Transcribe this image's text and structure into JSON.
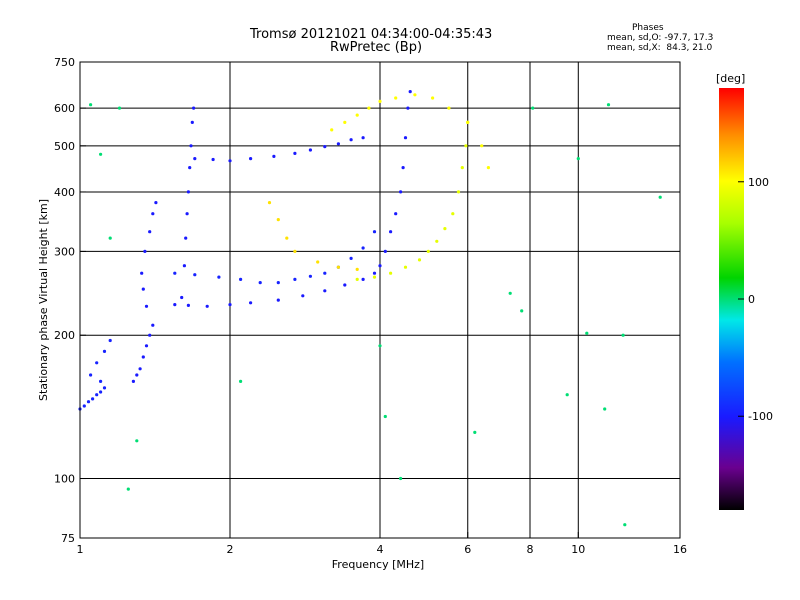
{
  "title_line1": "Tromsø 20121021 04:34:00-04:35:43",
  "title_line2": "RwPretec (Bp)",
  "phase_header": {
    "label": "Phases",
    "line_o": "mean, sd,O: -97.7, 17.3",
    "line_x": "mean, sd,X:  84.3, 21.0"
  },
  "colorbar": {
    "unit": "[deg]",
    "ticks": [
      {
        "value": 100,
        "label": "100"
      },
      {
        "value": 0,
        "label": "0"
      },
      {
        "value": -100,
        "label": "-100"
      }
    ],
    "range": [
      -180,
      180
    ]
  },
  "chart_data": {
    "type": "scatter",
    "xlabel": "Frequency [MHz]",
    "ylabel": "Stationary phase Virtual Height [km]",
    "xscale": "log",
    "yscale": "log",
    "xlim": [
      1,
      16
    ],
    "ylim": [
      75,
      750
    ],
    "xticks": [
      {
        "v": 1,
        "label": "1"
      },
      {
        "v": 2,
        "label": "2"
      },
      {
        "v": 4,
        "label": "4"
      },
      {
        "v": 6,
        "label": "6"
      },
      {
        "v": 8,
        "label": "8"
      },
      {
        "v": 10,
        "label": "10"
      },
      {
        "v": 16,
        "label": "16"
      }
    ],
    "xgrid": [
      2,
      4,
      6,
      8,
      10
    ],
    "yticks": [
      {
        "v": 75,
        "label": "75"
      },
      {
        "v": 100,
        "label": "100"
      },
      {
        "v": 200,
        "label": "200"
      },
      {
        "v": 300,
        "label": "300"
      },
      {
        "v": 400,
        "label": "400"
      },
      {
        "v": 500,
        "label": "500"
      },
      {
        "v": 600,
        "label": "600"
      },
      {
        "v": 750,
        "label": "750"
      }
    ],
    "ygrid": [
      100,
      200,
      300,
      400,
      500,
      600
    ],
    "color_by": "phase [deg]",
    "traces": [
      {
        "name": "low-E",
        "phase": -95,
        "points": [
          [
            1.0,
            140
          ],
          [
            1.02,
            142
          ],
          [
            1.04,
            145
          ],
          [
            1.06,
            147
          ],
          [
            1.08,
            150
          ],
          [
            1.1,
            152
          ],
          [
            1.12,
            155
          ],
          [
            1.1,
            160
          ],
          [
            1.05,
            165
          ],
          [
            1.08,
            175
          ],
          [
            1.12,
            185
          ],
          [
            1.15,
            195
          ]
        ]
      },
      {
        "name": "E-region",
        "phase": -100,
        "points": [
          [
            1.28,
            160
          ],
          [
            1.3,
            165
          ],
          [
            1.32,
            170
          ],
          [
            1.34,
            180
          ],
          [
            1.36,
            190
          ],
          [
            1.38,
            200
          ],
          [
            1.4,
            210
          ],
          [
            1.36,
            230
          ],
          [
            1.34,
            250
          ],
          [
            1.33,
            270
          ],
          [
            1.35,
            300
          ],
          [
            1.38,
            330
          ],
          [
            1.4,
            360
          ],
          [
            1.42,
            380
          ]
        ]
      },
      {
        "name": "F1-O",
        "phase": -100,
        "points": [
          [
            1.55,
            232
          ],
          [
            1.65,
            231
          ],
          [
            1.8,
            230
          ],
          [
            2.0,
            232
          ],
          [
            2.2,
            234
          ],
          [
            2.5,
            237
          ],
          [
            2.8,
            242
          ],
          [
            3.1,
            248
          ],
          [
            3.4,
            255
          ],
          [
            3.7,
            262
          ],
          [
            3.9,
            270
          ],
          [
            4.0,
            280
          ],
          [
            4.1,
            300
          ],
          [
            4.2,
            330
          ],
          [
            4.3,
            360
          ],
          [
            4.4,
            400
          ],
          [
            4.45,
            450
          ],
          [
            4.5,
            520
          ],
          [
            4.55,
            600
          ],
          [
            4.6,
            650
          ]
        ]
      },
      {
        "name": "F1-O-upper",
        "phase": -95,
        "points": [
          [
            1.55,
            270
          ],
          [
            1.7,
            268
          ],
          [
            1.9,
            265
          ],
          [
            2.1,
            262
          ],
          [
            2.3,
            258
          ],
          [
            2.5,
            258
          ],
          [
            2.7,
            262
          ],
          [
            2.9,
            266
          ],
          [
            3.1,
            270
          ],
          [
            3.3,
            278
          ],
          [
            3.5,
            290
          ],
          [
            3.7,
            305
          ],
          [
            3.9,
            330
          ]
        ]
      },
      {
        "name": "F1-X",
        "phase": 90,
        "points": [
          [
            3.6,
            262
          ],
          [
            3.9,
            265
          ],
          [
            4.2,
            270
          ],
          [
            4.5,
            278
          ],
          [
            4.8,
            288
          ],
          [
            5.0,
            300
          ],
          [
            5.2,
            315
          ],
          [
            5.4,
            335
          ],
          [
            5.6,
            360
          ],
          [
            5.75,
            400
          ],
          [
            5.85,
            450
          ],
          [
            5.95,
            500
          ],
          [
            6.0,
            560
          ]
        ]
      },
      {
        "name": "F-vertical",
        "phase": -100,
        "points": [
          [
            1.6,
            240
          ],
          [
            1.62,
            280
          ],
          [
            1.63,
            320
          ],
          [
            1.64,
            360
          ],
          [
            1.65,
            400
          ],
          [
            1.66,
            450
          ],
          [
            1.67,
            500
          ],
          [
            1.68,
            560
          ],
          [
            1.69,
            600
          ]
        ]
      },
      {
        "name": "F2-O",
        "phase": -100,
        "points": [
          [
            1.7,
            470
          ],
          [
            1.85,
            468
          ],
          [
            2.0,
            465
          ],
          [
            2.2,
            470
          ],
          [
            2.45,
            475
          ],
          [
            2.7,
            482
          ],
          [
            2.9,
            490
          ],
          [
            3.1,
            498
          ],
          [
            3.3,
            505
          ],
          [
            3.5,
            515
          ],
          [
            3.7,
            520
          ]
        ]
      },
      {
        "name": "F2-X-arc",
        "phase": 110,
        "points": [
          [
            2.4,
            380
          ],
          [
            2.5,
            350
          ],
          [
            2.6,
            320
          ],
          [
            2.7,
            300
          ],
          [
            3.0,
            285
          ],
          [
            3.3,
            278
          ],
          [
            3.6,
            275
          ]
        ]
      },
      {
        "name": "F2-X-high",
        "phase": 100,
        "points": [
          [
            3.2,
            540
          ],
          [
            3.4,
            560
          ],
          [
            3.6,
            580
          ],
          [
            3.8,
            600
          ],
          [
            4.0,
            620
          ],
          [
            4.3,
            630
          ],
          [
            4.7,
            640
          ],
          [
            5.1,
            630
          ],
          [
            5.5,
            600
          ],
          [
            6.0,
            560
          ],
          [
            6.4,
            500
          ],
          [
            6.6,
            450
          ]
        ]
      },
      {
        "name": "scatter-noise",
        "phase": 0,
        "points": [
          [
            1.05,
            610
          ],
          [
            1.1,
            480
          ],
          [
            1.15,
            320
          ],
          [
            1.2,
            600
          ],
          [
            1.25,
            95
          ],
          [
            1.3,
            120
          ],
          [
            2.1,
            160
          ],
          [
            4.0,
            190
          ],
          [
            4.1,
            135
          ],
          [
            4.4,
            100
          ],
          [
            6.2,
            125
          ],
          [
            7.3,
            245
          ],
          [
            7.7,
            225
          ],
          [
            8.1,
            600
          ],
          [
            9.5,
            150
          ],
          [
            10.0,
            470
          ],
          [
            11.3,
            140
          ],
          [
            11.5,
            610
          ],
          [
            12.4,
            80
          ],
          [
            14.6,
            390
          ],
          [
            12.3,
            200
          ],
          [
            10.4,
            202
          ]
        ]
      }
    ]
  }
}
